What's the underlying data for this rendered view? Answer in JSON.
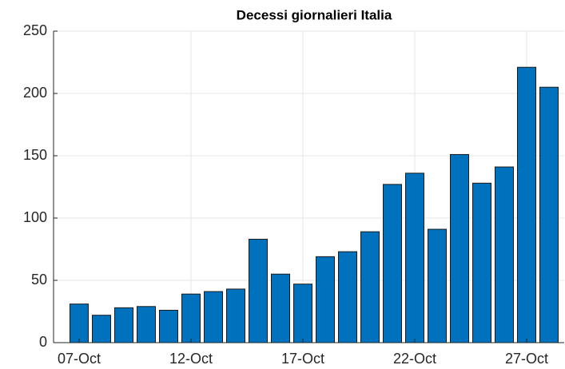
{
  "chart_data": {
    "type": "bar",
    "title": "Decessi giornalieri Italia",
    "categories": [
      "07-Oct",
      null,
      null,
      null,
      null,
      "12-Oct",
      null,
      null,
      null,
      null,
      "17-Oct",
      null,
      null,
      null,
      null,
      "22-Oct",
      null,
      null,
      null,
      null,
      "27-Oct",
      null
    ],
    "values": [
      31,
      22,
      28,
      29,
      26,
      39,
      41,
      43,
      83,
      55,
      47,
      69,
      73,
      89,
      127,
      136,
      91,
      151,
      128,
      141,
      221,
      205
    ],
    "color": "#0072bd",
    "ylim": [
      0,
      250
    ],
    "yticks": [
      0,
      50,
      100,
      150,
      200,
      250
    ],
    "grid": true
  }
}
